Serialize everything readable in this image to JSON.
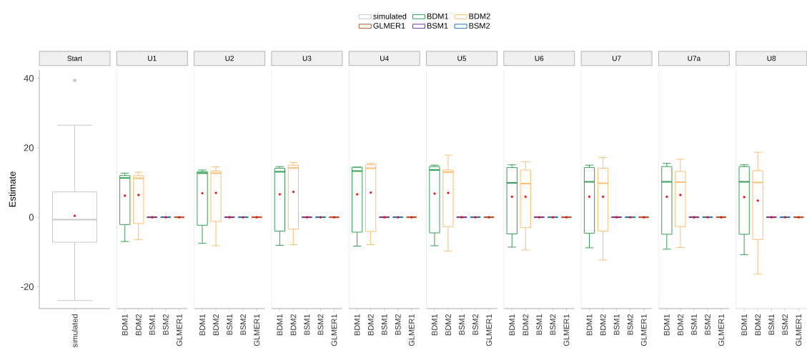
{
  "chart_data": [
    {
      "type": "box",
      "title": "Start",
      "ylabel": "Estimate",
      "categories": [
        "simulated"
      ],
      "ylim": [
        -26.3,
        42.4
      ],
      "yticks": [
        -20,
        0,
        20,
        40
      ],
      "legend": "top",
      "series": [
        {
          "name": "simulated",
          "color": "#c8c8c8",
          "boxes": [
            {
              "low": -24,
              "q1": -7.2,
              "median": -0.7,
              "q3": 7.3,
              "high": 26.5,
              "mean": 0.4,
              "outliers": [
                39.4
              ]
            }
          ]
        },
        {
          "name": "BDM1",
          "color": "#35a153",
          "boxes": [
            null
          ]
        },
        {
          "name": "BDM2",
          "color": "#fdbf6f",
          "boxes": [
            null
          ]
        },
        {
          "name": "GLMER1",
          "color": "#b15928",
          "boxes": [
            null
          ]
        },
        {
          "name": "BSM1",
          "color": "#6a3d9a",
          "boxes": [
            null
          ]
        },
        {
          "name": "BSM2",
          "color": "#1f78b4",
          "boxes": [
            null
          ]
        }
      ]
    },
    {
      "type": "box",
      "title": "U1",
      "categories": [
        "BDM1",
        "BDM2",
        "BSM1",
        "BSM2",
        "GLMER1"
      ],
      "ylim": [
        -26.3,
        42.4
      ],
      "tick_labels": "x",
      "series": [
        {
          "color": "#35a153",
          "boxes": [
            {
              "low": -7.0,
              "q1": -2.1,
              "median": 11.3,
              "q3": 12.0,
              "high": 12.7,
              "mean": 6.2
            },
            null,
            null,
            null,
            null
          ]
        },
        {
          "color": "#fdbf6f",
          "boxes": [
            null,
            {
              "low": -6.5,
              "q1": -1.8,
              "median": 11.2,
              "q3": 12.0,
              "high": 13.0,
              "mean": 6.4
            },
            null,
            null,
            null
          ]
        },
        {
          "color": "#6a3d9a",
          "boxes": [
            null,
            null,
            {
              "low": 0,
              "q1": 0,
              "median": 0,
              "q3": 0,
              "high": 0,
              "mean": 0
            },
            null,
            null
          ]
        },
        {
          "color": "#1f78b4",
          "boxes": [
            null,
            null,
            null,
            {
              "low": 0,
              "q1": 0,
              "median": 0,
              "q3": 0,
              "high": 0,
              "mean": 0
            },
            null
          ]
        },
        {
          "color": "#b15928",
          "boxes": [
            null,
            null,
            null,
            null,
            {
              "low": 0,
              "q1": 0,
              "median": 0,
              "q3": 0,
              "high": 0,
              "mean": 0
            }
          ]
        }
      ]
    },
    {
      "type": "box",
      "title": "U2",
      "categories": [
        "BDM1",
        "BDM2",
        "BSM1",
        "BSM2",
        "GLMER1"
      ],
      "ylim": [
        -26.3,
        42.4
      ],
      "tick_labels": "x",
      "series": [
        {
          "color": "#35a153",
          "boxes": [
            {
              "low": -7.5,
              "q1": -2.3,
              "median": 12.7,
              "q3": 13.1,
              "high": 13.6,
              "mean": 6.9
            },
            null,
            null,
            null,
            null
          ]
        },
        {
          "color": "#fdbf6f",
          "boxes": [
            null,
            {
              "low": -8.2,
              "q1": -1.2,
              "median": 12.7,
              "q3": 13.3,
              "high": 14.5,
              "mean": 7.0
            },
            null,
            null,
            null
          ]
        },
        {
          "color": "#6a3d9a",
          "boxes": [
            null,
            null,
            {
              "low": 0,
              "q1": 0,
              "median": 0,
              "q3": 0,
              "high": 0,
              "mean": 0
            },
            null,
            null
          ]
        },
        {
          "color": "#1f78b4",
          "boxes": [
            null,
            null,
            null,
            {
              "low": 0,
              "q1": 0,
              "median": 0,
              "q3": 0,
              "high": 0,
              "mean": 0
            },
            null
          ]
        },
        {
          "color": "#b15928",
          "boxes": [
            null,
            null,
            null,
            null,
            {
              "low": 0,
              "q1": 0,
              "median": 0,
              "q3": 0,
              "high": 0,
              "mean": 0
            }
          ]
        }
      ]
    },
    {
      "type": "box",
      "title": "U3",
      "categories": [
        "BDM1",
        "BDM2",
        "BSM1",
        "BSM2",
        "GLMER1"
      ],
      "ylim": [
        -26.3,
        42.4
      ],
      "tick_labels": "x",
      "series": [
        {
          "color": "#35a153",
          "boxes": [
            {
              "low": -8.1,
              "q1": -4.0,
              "median": 13.1,
              "q3": 14.1,
              "high": 14.6,
              "mean": 6.6
            },
            null,
            null,
            null,
            null
          ]
        },
        {
          "color": "#fdbf6f",
          "boxes": [
            null,
            {
              "low": -7.9,
              "q1": -3.4,
              "median": 14.2,
              "q3": 15.0,
              "high": 15.8,
              "mean": 7.3
            },
            null,
            null,
            null
          ]
        },
        {
          "color": "#6a3d9a",
          "boxes": [
            null,
            null,
            {
              "low": 0,
              "q1": 0,
              "median": 0,
              "q3": 0,
              "high": 0,
              "mean": 0
            },
            null,
            null
          ]
        },
        {
          "color": "#1f78b4",
          "boxes": [
            null,
            null,
            null,
            {
              "low": 0,
              "q1": 0,
              "median": 0,
              "q3": 0,
              "high": 0,
              "mean": 0
            },
            null
          ]
        },
        {
          "color": "#b15928",
          "boxes": [
            null,
            null,
            null,
            null,
            {
              "low": 0,
              "q1": 0,
              "median": 0,
              "q3": 0,
              "high": 0,
              "mean": 0
            }
          ]
        }
      ]
    },
    {
      "type": "box",
      "title": "U4",
      "categories": [
        "BDM1",
        "BDM2",
        "BSM1",
        "BSM2",
        "GLMER1"
      ],
      "ylim": [
        -26.3,
        42.4
      ],
      "tick_labels": "x",
      "series": [
        {
          "color": "#35a153",
          "boxes": [
            {
              "low": -8.3,
              "q1": -4.3,
              "median": 13.3,
              "q3": 14.4,
              "high": 14.4,
              "mean": 6.6
            },
            null,
            null,
            null,
            null
          ]
        },
        {
          "color": "#fdbf6f",
          "boxes": [
            null,
            {
              "low": -7.9,
              "q1": -4.1,
              "median": 14.1,
              "q3": 15.1,
              "high": 15.5,
              "mean": 7.1
            },
            null,
            null,
            null
          ]
        },
        {
          "color": "#6a3d9a",
          "boxes": [
            null,
            null,
            {
              "low": 0,
              "q1": 0,
              "median": 0,
              "q3": 0,
              "high": 0,
              "mean": 0
            },
            null,
            null
          ]
        },
        {
          "color": "#1f78b4",
          "boxes": [
            null,
            null,
            null,
            {
              "low": 0,
              "q1": 0,
              "median": 0,
              "q3": 0,
              "high": 0,
              "mean": 0
            },
            null
          ]
        },
        {
          "color": "#b15928",
          "boxes": [
            null,
            null,
            null,
            null,
            {
              "low": 0,
              "q1": 0,
              "median": 0,
              "q3": 0,
              "high": 0,
              "mean": 0
            }
          ]
        }
      ]
    },
    {
      "type": "box",
      "title": "U5",
      "categories": [
        "BDM1",
        "BDM2",
        "BSM1",
        "BSM2",
        "GLMER1"
      ],
      "ylim": [
        -26.3,
        42.4
      ],
      "tick_labels": "x",
      "series": [
        {
          "color": "#35a153",
          "boxes": [
            {
              "low": -8.2,
              "q1": -4.5,
              "median": 13.6,
              "q3": 14.6,
              "high": 15.0,
              "mean": 6.8
            },
            null,
            null,
            null,
            null
          ]
        },
        {
          "color": "#fdbf6f",
          "boxes": [
            null,
            {
              "low": -9.8,
              "q1": -2.7,
              "median": 13.0,
              "q3": 13.6,
              "high": 17.9,
              "mean": 7.0
            },
            null,
            null,
            null
          ]
        },
        {
          "color": "#6a3d9a",
          "boxes": [
            null,
            null,
            {
              "low": 0,
              "q1": 0,
              "median": 0,
              "q3": 0,
              "high": 0,
              "mean": 0
            },
            null,
            null
          ]
        },
        {
          "color": "#1f78b4",
          "boxes": [
            null,
            null,
            null,
            {
              "low": 0,
              "q1": 0,
              "median": 0,
              "q3": 0,
              "high": 0,
              "mean": 0
            },
            null
          ]
        },
        {
          "color": "#b15928",
          "boxes": [
            null,
            null,
            null,
            null,
            {
              "low": 0,
              "q1": 0,
              "median": 0,
              "q3": 0,
              "high": 0,
              "mean": 0
            }
          ]
        }
      ]
    },
    {
      "type": "box",
      "title": "U6",
      "categories": [
        "BDM1",
        "BDM2",
        "BSM1",
        "BSM2",
        "GLMER1"
      ],
      "ylim": [
        -26.3,
        42.4
      ],
      "tick_labels": "x",
      "series": [
        {
          "color": "#35a153",
          "boxes": [
            {
              "low": -8.6,
              "q1": -4.8,
              "median": 9.9,
              "q3": 14.3,
              "high": 15.1,
              "mean": 5.9
            },
            null,
            null,
            null,
            null
          ]
        },
        {
          "color": "#fdbf6f",
          "boxes": [
            null,
            {
              "low": -9.4,
              "q1": -3.0,
              "median": 9.7,
              "q3": 13.6,
              "high": 16.0,
              "mean": 5.9
            },
            null,
            null,
            null
          ]
        },
        {
          "color": "#6a3d9a",
          "boxes": [
            null,
            null,
            {
              "low": 0,
              "q1": 0,
              "median": 0,
              "q3": 0,
              "high": 0,
              "mean": 0
            },
            null,
            null
          ]
        },
        {
          "color": "#1f78b4",
          "boxes": [
            null,
            null,
            null,
            {
              "low": 0,
              "q1": 0,
              "median": 0,
              "q3": 0,
              "high": 0,
              "mean": 0
            },
            null
          ]
        },
        {
          "color": "#b15928",
          "boxes": [
            null,
            null,
            null,
            null,
            {
              "low": 0,
              "q1": 0,
              "median": 0,
              "q3": 0,
              "high": 0,
              "mean": 0
            }
          ]
        }
      ]
    },
    {
      "type": "box",
      "title": "U7",
      "categories": [
        "BDM1",
        "BDM2",
        "BSM1",
        "BSM2",
        "GLMER1"
      ],
      "ylim": [
        -26.3,
        42.4
      ],
      "tick_labels": "x",
      "series": [
        {
          "color": "#35a153",
          "boxes": [
            {
              "low": -8.8,
              "q1": -4.6,
              "median": 10.2,
              "q3": 14.3,
              "high": 15.0,
              "mean": 5.9
            },
            null,
            null,
            null,
            null
          ]
        },
        {
          "color": "#fdbf6f",
          "boxes": [
            null,
            {
              "low": -12.3,
              "q1": -4.0,
              "median": 9.8,
              "q3": 14.1,
              "high": 17.2,
              "mean": 5.9
            },
            null,
            null,
            null
          ]
        },
        {
          "color": "#6a3d9a",
          "boxes": [
            null,
            null,
            {
              "low": 0,
              "q1": 0,
              "median": 0,
              "q3": 0,
              "high": 0,
              "mean": 0
            },
            null,
            null
          ]
        },
        {
          "color": "#1f78b4",
          "boxes": [
            null,
            null,
            null,
            {
              "low": 0,
              "q1": 0,
              "median": 0,
              "q3": 0,
              "high": 0,
              "mean": 0
            },
            null
          ]
        },
        {
          "color": "#b15928",
          "boxes": [
            null,
            null,
            null,
            null,
            {
              "low": 0,
              "q1": 0,
              "median": 0,
              "q3": 0,
              "high": 0,
              "mean": 0
            }
          ]
        }
      ]
    },
    {
      "type": "box",
      "title": "U7a",
      "categories": [
        "BDM1",
        "BDM2",
        "BSM1",
        "BSM2",
        "GLMER1"
      ],
      "ylim": [
        -26.3,
        42.4
      ],
      "tick_labels": "x",
      "series": [
        {
          "color": "#35a153",
          "boxes": [
            {
              "low": -9.2,
              "q1": -4.9,
              "median": 10.2,
              "q3": 14.6,
              "high": 15.5,
              "mean": 5.9
            },
            null,
            null,
            null,
            null
          ]
        },
        {
          "color": "#fdbf6f",
          "boxes": [
            null,
            {
              "low": -8.7,
              "q1": -2.7,
              "median": 10.1,
              "q3": 13.2,
              "high": 16.7,
              "mean": 6.4
            },
            null,
            null,
            null
          ]
        },
        {
          "color": "#6a3d9a",
          "boxes": [
            null,
            null,
            {
              "low": 0,
              "q1": 0,
              "median": 0,
              "q3": 0,
              "high": 0,
              "mean": 0
            },
            null,
            null
          ]
        },
        {
          "color": "#1f78b4",
          "boxes": [
            null,
            null,
            null,
            {
              "low": 0,
              "q1": 0,
              "median": 0,
              "q3": 0,
              "high": 0,
              "mean": 0
            },
            null
          ]
        },
        {
          "color": "#b15928",
          "boxes": [
            null,
            null,
            null,
            null,
            {
              "low": 0,
              "q1": 0,
              "median": 0,
              "q3": 0,
              "high": 0,
              "mean": 0
            }
          ]
        }
      ]
    },
    {
      "type": "box",
      "title": "U8",
      "categories": [
        "BDM1",
        "BDM2",
        "BSM1",
        "BSM2",
        "GLMER1"
      ],
      "ylim": [
        -26.3,
        42.4
      ],
      "tick_labels": "x",
      "series": [
        {
          "color": "#35a153",
          "boxes": [
            {
              "low": -10.8,
              "q1": -4.9,
              "median": 10.2,
              "q3": 14.6,
              "high": 15.1,
              "mean": 5.8
            },
            null,
            null,
            null,
            null
          ]
        },
        {
          "color": "#fdbf6f",
          "boxes": [
            null,
            {
              "low": -16.4,
              "q1": -6.4,
              "median": 10.0,
              "q3": 13.4,
              "high": 18.7,
              "mean": 4.8
            },
            null,
            null,
            null
          ]
        },
        {
          "color": "#6a3d9a",
          "boxes": [
            null,
            null,
            {
              "low": 0,
              "q1": 0,
              "median": 0,
              "q3": 0,
              "high": 0,
              "mean": 0
            },
            null,
            null
          ]
        },
        {
          "color": "#1f78b4",
          "boxes": [
            null,
            null,
            null,
            {
              "low": 0,
              "q1": 0,
              "median": 0,
              "q3": 0,
              "high": 0,
              "mean": 0
            },
            null
          ]
        },
        {
          "color": "#b15928",
          "boxes": [
            null,
            null,
            null,
            null,
            {
              "low": 0,
              "q1": 0,
              "median": 0,
              "q3": 0,
              "high": 0,
              "mean": 0
            }
          ]
        }
      ]
    }
  ]
}
